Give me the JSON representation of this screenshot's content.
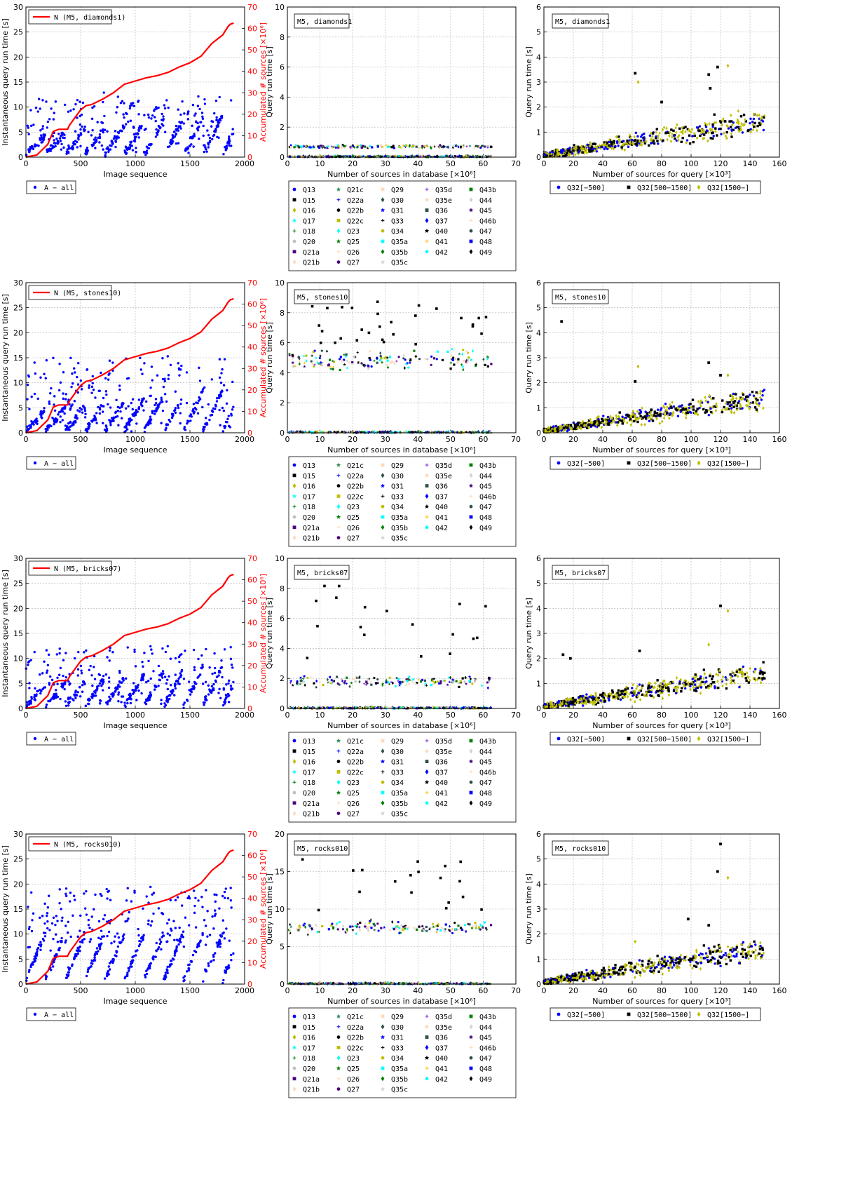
{
  "figure_rows": [
    {
      "dataset": "diamonds1",
      "label": "N (M5, diamonds1)",
      "panel_label": "M5, diamonds1"
    },
    {
      "dataset": "stones10",
      "label": "N (M5, stones10)",
      "panel_label": "M5, stones10"
    },
    {
      "dataset": "bricks07",
      "label": "N (M5, bricks07)",
      "panel_label": "M5, bricks07"
    },
    {
      "dataset": "rocks010",
      "label": "N (M5, rocks010)",
      "panel_label": "M5, rocks010"
    }
  ],
  "chart_data": [
    {
      "type": "scatter",
      "column": "left",
      "xlabel": "Image sequence",
      "ylabel": "Instantaneous query run time [s]",
      "y2label": "Accumulated # sources [×10⁶]",
      "xlim": [
        0,
        2000
      ],
      "ylim": [
        0,
        30
      ],
      "y2lim": [
        0,
        70
      ],
      "xticks": [
        0,
        500,
        1000,
        1500,
        2000
      ],
      "yticks": [
        0,
        5,
        10,
        15,
        20,
        25,
        30
      ],
      "y2ticks": [
        0,
        10,
        20,
        30,
        40,
        50,
        60,
        70
      ],
      "grid": true,
      "series": [
        {
          "name": "A − all",
          "kind": "scatter",
          "color": "#0000ff"
        },
        {
          "name": "N (M5, dataset)",
          "kind": "line",
          "axis": "right",
          "color": "#ff0000",
          "x": [
            0,
            100,
            200,
            250,
            300,
            380,
            400,
            500,
            550,
            600,
            700,
            800,
            900,
            1000,
            1100,
            1200,
            1300,
            1400,
            1500,
            1600,
            1700,
            1750,
            1800,
            1850,
            1870,
            1900
          ],
          "y": [
            0,
            1,
            6,
            12,
            13,
            13,
            15,
            22,
            24,
            24.5,
            27,
            30,
            34,
            35.5,
            37,
            38,
            39.5,
            42,
            44,
            47,
            53,
            55,
            57,
            61,
            62,
            62.5
          ]
        }
      ],
      "legend": "upper-left"
    },
    {
      "type": "scatter",
      "column": "middle",
      "xlabel": "Number of sources in database [×10⁶]",
      "ylabel": "Query run time [s]",
      "xlim": [
        0,
        70
      ],
      "xticks": [
        0,
        10,
        20,
        30,
        40,
        50,
        60,
        70
      ],
      "ylims": [
        [
          0,
          10
        ],
        [
          0,
          10
        ],
        [
          0,
          10
        ],
        [
          0,
          20
        ]
      ],
      "yticks_by_row": [
        [
          0,
          2,
          4,
          6,
          8,
          10
        ],
        [
          0,
          2,
          4,
          6,
          8,
          10
        ],
        [
          0,
          2,
          4,
          6,
          8,
          10
        ],
        [
          0,
          5,
          10,
          15,
          20
        ]
      ],
      "grid": true,
      "legend": "below",
      "series_names": [
        "Q13",
        "Q15",
        "Q16",
        "Q17",
        "Q18",
        "Q20",
        "Q21a",
        "Q21b",
        "Q21c",
        "Q22a",
        "Q22b",
        "Q22c",
        "Q23",
        "Q25",
        "Q26",
        "Q27",
        "Q29",
        "Q30",
        "Q31",
        "Q33",
        "Q34",
        "Q35a",
        "Q35b",
        "Q35c",
        "Q35d",
        "Q35e",
        "Q36",
        "Q37",
        "Q40",
        "Q41",
        "Q42",
        "Q43b",
        "Q44",
        "Q45",
        "Q46b",
        "Q47",
        "Q48",
        "Q49"
      ],
      "series_colors": [
        "#0000ff",
        "#000000",
        "#bfbf00",
        "#00ffff",
        "#008000",
        "#c0c0c0",
        "#4b0082",
        "#ffdab9",
        "#2e8b57",
        "#0000ff",
        "#000000",
        "#bfbf00",
        "#00ffff",
        "#008000",
        "#ffdab9",
        "#4b0082",
        "#ffdab9",
        "#2f4f4f",
        "#0000ff",
        "#000000",
        "#bfbf00",
        "#00ffff",
        "#008000",
        "#d3d3d3",
        "#8a2be2",
        "#ffdab9",
        "#2f4f4f",
        "#0000ff",
        "#000000",
        "#ffc000",
        "#00ffff",
        "#008000",
        "#d3d3d3",
        "#4b0082",
        "#ffdab9",
        "#2f4f4f",
        "#0000ff",
        "#000000"
      ],
      "series_markers": [
        "o",
        "s",
        "d",
        "*",
        "+",
        "o",
        "s",
        "d",
        "*",
        "+",
        "o",
        "s",
        "d",
        "*",
        "+",
        "o",
        "s",
        "d",
        "*",
        "+",
        "o",
        "s",
        "d",
        "*",
        "+",
        "o",
        "s",
        "d",
        "*",
        "+",
        "o",
        "s",
        "d",
        "*",
        "+",
        "o",
        "s",
        "d"
      ]
    },
    {
      "type": "scatter",
      "column": "right",
      "xlabel": "Number of sources for query [×10³]",
      "ylabel": "Query run time [s]",
      "xlim": [
        0,
        160
      ],
      "ylim": [
        0,
        6
      ],
      "xticks": [
        0,
        20,
        40,
        60,
        80,
        100,
        120,
        140,
        160
      ],
      "yticks": [
        0,
        1,
        2,
        3,
        4,
        5,
        6
      ],
      "grid": true,
      "legend": "below",
      "series": [
        {
          "name": "Q32[−500]",
          "color": "#0000ff",
          "marker": "o"
        },
        {
          "name": "Q32[500−1500]",
          "color": "#000000",
          "marker": "s"
        },
        {
          "name": "Q32[1500−]",
          "color": "#bfbf00",
          "marker": "d"
        }
      ]
    }
  ]
}
